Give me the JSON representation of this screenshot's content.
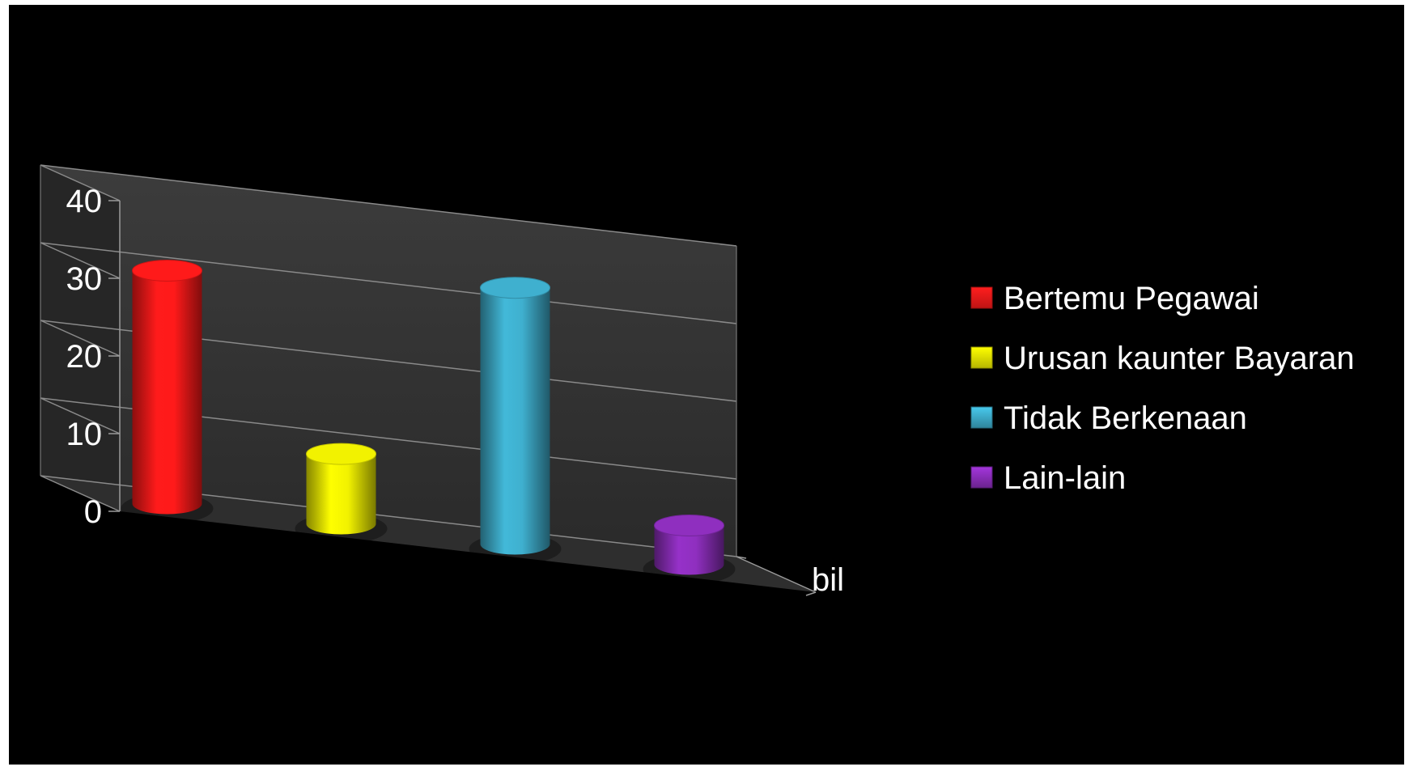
{
  "chart_data": {
    "type": "bar",
    "style": "3d-cylinder",
    "categories": [
      "bil"
    ],
    "series": [
      {
        "name": "Bertemu Pegawai",
        "values": [
          30
        ],
        "color": "#ff1a1a"
      },
      {
        "name": "Urusan kaunter Bayaran",
        "values": [
          9
        ],
        "color": "#f2f200"
      },
      {
        "name": "Tidak Berkenaan",
        "values": [
          33
        ],
        "color": "#3fb0cf"
      },
      {
        "name": "Lain-lain",
        "values": [
          5
        ],
        "color": "#8f2fbf"
      }
    ],
    "yticks": [
      "0",
      "10",
      "20",
      "30",
      "40"
    ],
    "ylim": [
      0,
      40
    ],
    "grid": true,
    "legend": "right",
    "background": "#000000",
    "wall_color": "#3a3a3a",
    "floor_color": "#2e2e2e"
  }
}
